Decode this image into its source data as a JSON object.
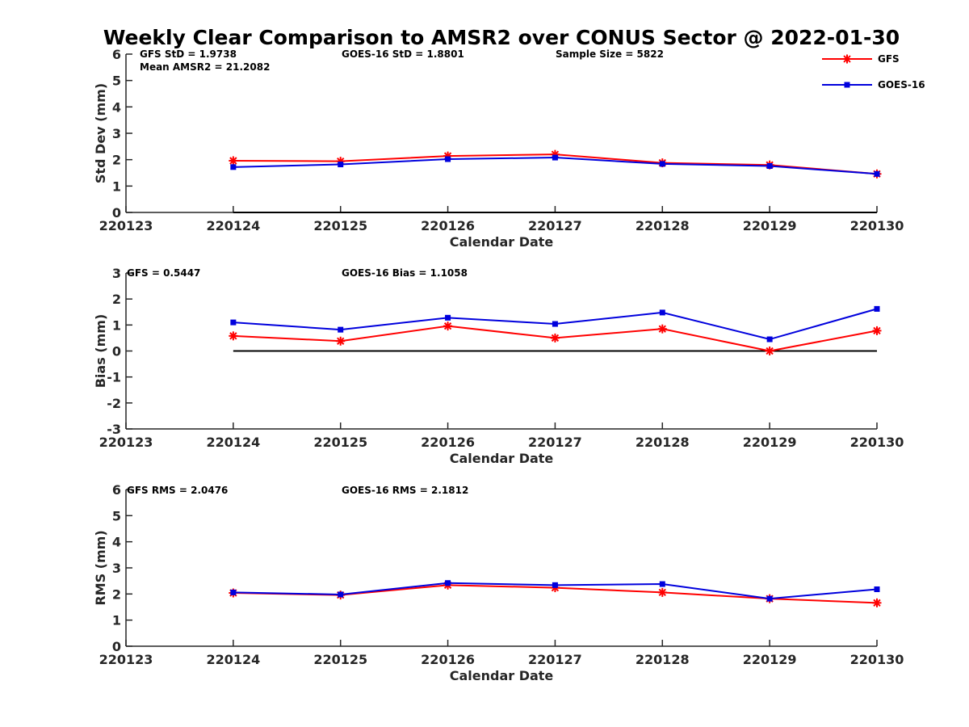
{
  "title": "Weekly Clear Comparison to AMSR2 over CONUS Sector @ 2022-01-30",
  "legend": {
    "placement": "top-right",
    "entries": [
      {
        "name": "GFS",
        "color": "#ff0000",
        "marker": "asterisk"
      },
      {
        "name": "GOES-16",
        "color": "#0000dd",
        "marker": "square"
      }
    ]
  },
  "chart_data": [
    {
      "type": "line",
      "xlabel": "Calendar Date",
      "ylabel": "Std Dev (mm)",
      "xticks": [
        "220123",
        "220124",
        "220125",
        "220126",
        "220127",
        "220128",
        "220129",
        "220130"
      ],
      "yticks": [
        "0",
        "1",
        "2",
        "3",
        "4",
        "5",
        "6"
      ],
      "ylim": [
        0,
        6
      ],
      "annotations": [
        "GFS StD = 1.9738",
        "GOES-16 StD = 1.8801",
        "Sample Size = 5822",
        "Mean AMSR2 = 21.2082"
      ],
      "x": [
        "220124",
        "220125",
        "220126",
        "220127",
        "220128",
        "220129",
        "220130"
      ],
      "series": [
        {
          "name": "GFS",
          "color": "#ff0000",
          "marker": "asterisk",
          "values": [
            1.96,
            1.94,
            2.14,
            2.2,
            1.88,
            1.8,
            1.46
          ]
        },
        {
          "name": "GOES-16",
          "color": "#0000dd",
          "marker": "square",
          "values": [
            1.72,
            1.82,
            2.02,
            2.08,
            1.84,
            1.76,
            1.46
          ]
        }
      ],
      "reference_line": {
        "y": 0,
        "color": "#000000"
      }
    },
    {
      "type": "line",
      "xlabel": "Calendar Date",
      "ylabel": "Bias (mm)",
      "xticks": [
        "220123",
        "220124",
        "220125",
        "220126",
        "220127",
        "220128",
        "220129",
        "220130"
      ],
      "yticks": [
        "-3",
        "-2",
        "-1",
        "0",
        "1",
        "2",
        "3"
      ],
      "ylim": [
        -3,
        3
      ],
      "annotations": [
        "GFS = 0.5447",
        "GOES-16 Bias  = 1.1058"
      ],
      "x": [
        "220124",
        "220125",
        "220126",
        "220127",
        "220128",
        "220129",
        "220130"
      ],
      "series": [
        {
          "name": "GFS",
          "color": "#ff0000",
          "marker": "asterisk",
          "values": [
            0.58,
            0.38,
            0.96,
            0.5,
            0.85,
            0.0,
            0.78
          ]
        },
        {
          "name": "GOES-16",
          "color": "#0000dd",
          "marker": "square",
          "values": [
            1.1,
            0.82,
            1.28,
            1.04,
            1.48,
            0.45,
            1.62
          ]
        }
      ],
      "reference_line": {
        "y": 0,
        "color": "#000000"
      }
    },
    {
      "type": "line",
      "xlabel": "Calendar Date",
      "ylabel": "RMS (mm)",
      "xticks": [
        "220123",
        "220124",
        "220125",
        "220126",
        "220127",
        "220128",
        "220129",
        "220130"
      ],
      "yticks": [
        "0",
        "1",
        "2",
        "3",
        "4",
        "5",
        "6"
      ],
      "ylim": [
        0,
        6
      ],
      "annotations": [
        "GFS RMS = 2.0476",
        "GOES-16 RMS = 2.1812"
      ],
      "x": [
        "220124",
        "220125",
        "220126",
        "220127",
        "220128",
        "220129",
        "220130"
      ],
      "series": [
        {
          "name": "GFS",
          "color": "#ff0000",
          "marker": "asterisk",
          "values": [
            2.04,
            1.96,
            2.34,
            2.24,
            2.06,
            1.82,
            1.66
          ]
        },
        {
          "name": "GOES-16",
          "color": "#0000dd",
          "marker": "square",
          "values": [
            2.06,
            1.98,
            2.42,
            2.34,
            2.38,
            1.82,
            2.18
          ]
        }
      ],
      "reference_line": null
    }
  ]
}
